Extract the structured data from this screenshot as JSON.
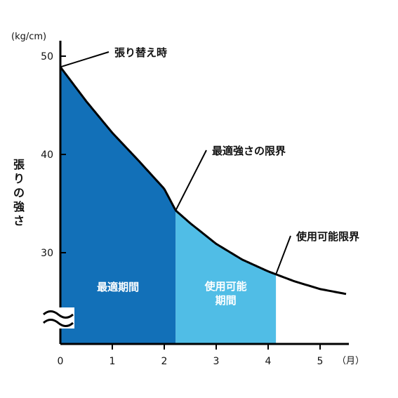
{
  "chart_data": {
    "type": "area",
    "y_unit": "(kg/cm)",
    "x_unit": "（月）",
    "ylabel": "張りの強さ",
    "xlim": [
      0,
      5.5
    ],
    "ylim": [
      21,
      52
    ],
    "x_ticks": [
      0,
      1,
      2,
      3,
      4,
      5
    ],
    "y_ticks": [
      30,
      40,
      50
    ],
    "curve": {
      "x": [
        0,
        0.5,
        1,
        1.5,
        2,
        2.22,
        2.5,
        3,
        3.5,
        4,
        4.15,
        4.5,
        5,
        5.5
      ],
      "y": [
        48.9,
        45.4,
        42.2,
        39.4,
        36.5,
        34.3,
        33.0,
        30.9,
        29.3,
        28.1,
        27.8,
        27.1,
        26.3,
        25.8
      ]
    },
    "regions": [
      {
        "name": "最適期間",
        "x_range": [
          0,
          2.22
        ],
        "color": "#1270b8",
        "label_lines": [
          "最適期間"
        ]
      },
      {
        "name": "使用可能期間",
        "x_range": [
          2.22,
          4.15
        ],
        "color": "#50bde6",
        "label_lines": [
          "使用可能",
          "期間"
        ]
      }
    ],
    "annotations": [
      {
        "text": "張り替え時",
        "x": 0,
        "y": 48.9
      },
      {
        "text": "最適強さの限界",
        "x": 2.22,
        "y": 34.3
      },
      {
        "text": "使用可能限界",
        "x": 4.15,
        "y": 27.8
      }
    ],
    "axis_break": true
  }
}
